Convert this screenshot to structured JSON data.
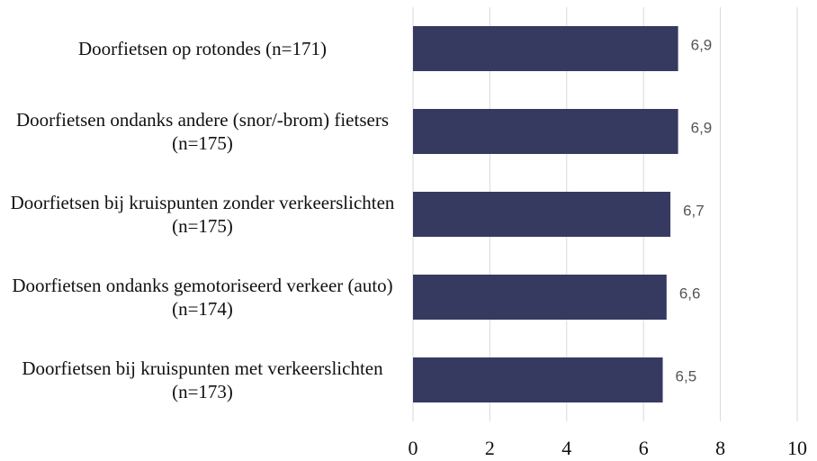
{
  "chart_data": {
    "type": "barh",
    "categories": [
      "Doorfietsen op rotondes (n=171)",
      "Doorfietsen ondanks andere (snor/-brom) fietsers (n=175)",
      "Doorfietsen bij kruispunten zonder verkeerslichten (n=175)",
      "Doorfietsen ondanks gemotoriseerd verkeer (auto) (n=174)",
      "Doorfietsen bij kruispunten met verkeerslichten (n=173)"
    ],
    "values": [
      6.9,
      6.9,
      6.7,
      6.6,
      6.5
    ],
    "value_labels": [
      "6,9",
      "6,9",
      "6,7",
      "6,6",
      "6,5"
    ],
    "color": "#363a61",
    "xlim": [
      0,
      10
    ],
    "xticks": [
      0,
      2,
      4,
      6,
      8,
      10
    ],
    "grid": true
  }
}
